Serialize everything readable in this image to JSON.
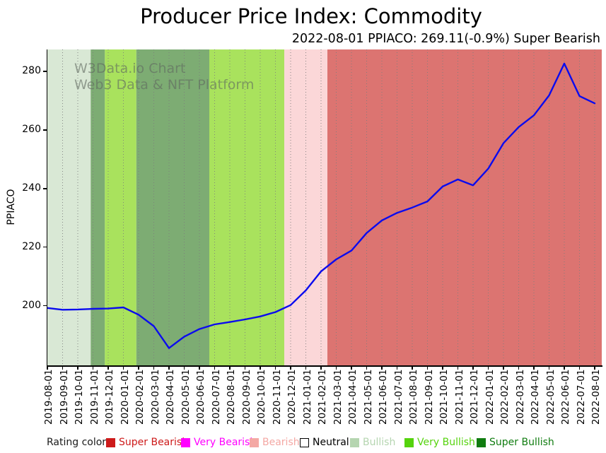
{
  "header": {
    "title": "Producer Price Index: Commodity",
    "subtitle": "2022-08-01 PPIACO: 269.11(-0.9%) Super Bearish"
  },
  "watermark": {
    "line1": "W3Data.io Chart",
    "line2": "Web3 Data & NFT Platform"
  },
  "chart_data": {
    "type": "line",
    "title": "Producer Price Index: Commodity",
    "subtitle": "2022-08-01 PPIACO: 269.11(-0.9%) Super Bearish",
    "xlabel": "",
    "ylabel": "PPIACO",
    "ylim": [
      179.6,
      287.5
    ],
    "yticks": [
      200,
      220,
      240,
      260,
      280
    ],
    "grid": "vertical dotted monthly gridlines",
    "legend_position": "bottom",
    "line_color": "#0b0bee",
    "latest": {
      "date": "2022-08-01",
      "value": 269.11,
      "change_pct": -0.9,
      "rating": "Super Bearish"
    },
    "x": [
      "2019-08-01",
      "2019-09-01",
      "2019-10-01",
      "2019-11-01",
      "2019-12-01",
      "2020-01-01",
      "2020-02-01",
      "2020-03-01",
      "2020-04-01",
      "2020-05-01",
      "2020-06-01",
      "2020-07-01",
      "2020-08-01",
      "2020-09-01",
      "2020-10-01",
      "2020-11-01",
      "2020-12-01",
      "2021-01-01",
      "2021-02-01",
      "2021-03-01",
      "2021-04-01",
      "2021-05-01",
      "2021-06-01",
      "2021-07-01",
      "2021-08-01",
      "2021-09-01",
      "2021-10-01",
      "2021-11-01",
      "2021-12-01",
      "2022-01-01",
      "2022-02-01",
      "2022-03-01",
      "2022-04-01",
      "2022-05-01",
      "2022-06-01",
      "2022-07-01",
      "2022-08-01"
    ],
    "values": [
      199.2,
      198.6,
      198.7,
      198.9,
      199.0,
      199.4,
      196.9,
      193.0,
      185.5,
      189.4,
      192.0,
      193.6,
      194.4,
      195.3,
      196.3,
      197.8,
      200.2,
      205.2,
      211.7,
      215.8,
      218.8,
      224.8,
      229.1,
      231.7,
      233.5,
      235.6,
      240.7,
      243.1,
      241.1,
      246.8,
      255.5,
      261.0,
      265.0,
      271.8,
      282.7,
      271.6,
      269.11
    ],
    "rating_bands": [
      {
        "rating": "Bullish",
        "start_month": 0,
        "end_month": 2.85,
        "color": "#d9e8d5"
      },
      {
        "rating": "Super Bullish",
        "start_month": 2.85,
        "end_month": 3.78,
        "color": "#7dac73"
      },
      {
        "rating": "Very Bullish",
        "start_month": 3.78,
        "end_month": 5.85,
        "color": "#a9e25d"
      },
      {
        "rating": "Super Bullish",
        "start_month": 5.85,
        "end_month": 10.65,
        "color": "#7dac73"
      },
      {
        "rating": "Very Bullish",
        "start_month": 10.65,
        "end_month": 15.58,
        "color": "#a9e25d"
      },
      {
        "rating": "Bearish",
        "start_month": 15.58,
        "end_month": 18.42,
        "color": "#fbd7d8"
      },
      {
        "rating": "Super Bearish",
        "start_month": 18.42,
        "end_month": 36.47,
        "color": "#dc7471"
      }
    ]
  },
  "legend": {
    "label": "Rating color",
    "items": [
      {
        "label": "Super Bearish",
        "color": "#cd1a1a",
        "border": "#cd1a1a",
        "text_color": "#cd1a1a"
      },
      {
        "label": "Very Bearish",
        "color": "#ff00ff",
        "border": "#ff00ff",
        "text_color": "#ff00ff"
      },
      {
        "label": "Bearish",
        "color": "#f4a8a4",
        "border": "#f4a8a4",
        "text_color": "#f4a8a4"
      },
      {
        "label": "Neutral",
        "color": "#ffffff",
        "border": "#000000",
        "text_color": "#000000"
      },
      {
        "label": "Bullish",
        "color": "#b5d5b0",
        "border": "#b5d5b0",
        "text_color": "#b5d5b0"
      },
      {
        "label": "Very Bullish",
        "color": "#55d30d",
        "border": "#55d30d",
        "text_color": "#55d30d"
      },
      {
        "label": "Super Bullish",
        "color": "#107c10",
        "border": "#107c10",
        "text_color": "#107c10"
      }
    ]
  }
}
